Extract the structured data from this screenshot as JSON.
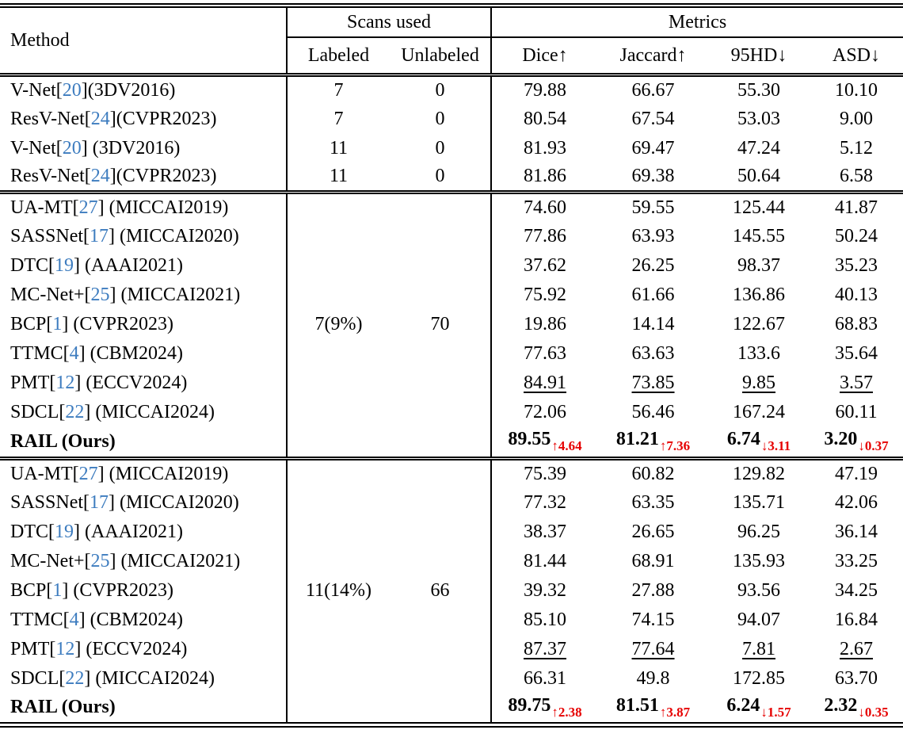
{
  "colors": {
    "citation_blue": "#3d7cbf",
    "highlight_red": "#e60000"
  },
  "header": {
    "method": "Method",
    "scans_used": "Scans used",
    "metrics": "Metrics",
    "labeled": "Labeled",
    "unlabeled": "Unlabeled",
    "metric_cols": [
      "Dice↑",
      "Jaccard↑",
      "95HD↓",
      "ASD↓"
    ]
  },
  "sections": [
    {
      "rows": [
        {
          "method": {
            "pre": "V-Net[",
            "cite": "20",
            "post": "](3DV2016)"
          },
          "bold": false,
          "underline": false,
          "labeled": "7",
          "unlabeled": "0",
          "cells": [
            "79.88",
            "66.67",
            "55.30",
            "10.10"
          ]
        },
        {
          "method": {
            "pre": "ResV-Net[",
            "cite": "24",
            "post": "](CVPR2023)"
          },
          "bold": false,
          "underline": false,
          "labeled": "7",
          "unlabeled": "0",
          "cells": [
            "80.54",
            "67.54",
            "53.03",
            "9.00"
          ]
        },
        {
          "method": {
            "pre": "V-Net[",
            "cite": "20",
            "post": "] (3DV2016)"
          },
          "bold": false,
          "underline": false,
          "labeled": "11",
          "unlabeled": "0",
          "cells": [
            "81.93",
            "69.47",
            "47.24",
            "5.12"
          ]
        },
        {
          "method": {
            "pre": "ResV-Net[",
            "cite": "24",
            "post": "](CVPR2023)"
          },
          "bold": false,
          "underline": false,
          "labeled": "11",
          "unlabeled": "0",
          "cells": [
            "81.86",
            "69.38",
            "50.64",
            "6.58"
          ]
        }
      ]
    },
    {
      "rows": [
        {
          "method": {
            "pre": "UA-MT[",
            "cite": "27",
            "post": "] (MICCAI2019)"
          },
          "bold": false,
          "underline": false,
          "labeled": "",
          "unlabeled": "",
          "cells": [
            "74.60",
            "59.55",
            "125.44",
            "41.87"
          ]
        },
        {
          "method": {
            "pre": "SASSNet[",
            "cite": "17",
            "post": "] (MICCAI2020)"
          },
          "bold": false,
          "underline": false,
          "labeled": "",
          "unlabeled": "",
          "cells": [
            "77.86",
            "63.93",
            "145.55",
            "50.24"
          ]
        },
        {
          "method": {
            "pre": "DTC[",
            "cite": "19",
            "post": "] (AAAI2021)"
          },
          "bold": false,
          "underline": false,
          "labeled": "",
          "unlabeled": "",
          "cells": [
            "37.62",
            "26.25",
            "98.37",
            "35.23"
          ]
        },
        {
          "method": {
            "pre": "MC-Net+[",
            "cite": "25",
            "post": "] (MICCAI2021)"
          },
          "bold": false,
          "underline": false,
          "labeled": "",
          "unlabeled": "",
          "cells": [
            "75.92",
            "61.66",
            "136.86",
            "40.13"
          ]
        },
        {
          "method": {
            "pre": "BCP[",
            "cite": "1",
            "post": "] (CVPR2023)"
          },
          "bold": false,
          "underline": false,
          "labeled": "7(9%)",
          "unlabeled": "70",
          "cells": [
            "19.86",
            "14.14",
            "122.67",
            "68.83"
          ]
        },
        {
          "method": {
            "pre": "TTMC[",
            "cite": "4",
            "post": "] (CBM2024)"
          },
          "bold": false,
          "underline": false,
          "labeled": "",
          "unlabeled": "",
          "cells": [
            "77.63",
            "63.63",
            "133.6",
            "35.64"
          ]
        },
        {
          "method": {
            "pre": "PMT[",
            "cite": "12",
            "post": "] (ECCV2024)"
          },
          "bold": false,
          "underline": true,
          "labeled": "",
          "unlabeled": "",
          "cells": [
            "84.91",
            "73.85",
            "9.85",
            "3.57"
          ]
        },
        {
          "method": {
            "pre": "SDCL[",
            "cite": "22",
            "post": "] (MICCAI2024)"
          },
          "bold": false,
          "underline": false,
          "labeled": "",
          "unlabeled": "",
          "cells": [
            "72.06",
            "56.46",
            "167.24",
            "60.11"
          ]
        },
        {
          "method": {
            "pre": "RAIL (Ours)",
            "cite": "",
            "post": ""
          },
          "bold": true,
          "underline": false,
          "labeled": "",
          "unlabeled": "",
          "cells": [
            {
              "main": "89.55",
              "arrow": "↑",
              "delta": "4.64"
            },
            {
              "main": "81.21",
              "arrow": "↑",
              "delta": "7.36"
            },
            {
              "main": "6.74",
              "arrow": "↓",
              "delta": "3.11"
            },
            {
              "main": "3.20",
              "arrow": "↓",
              "delta": "0.37"
            }
          ]
        }
      ]
    },
    {
      "rows": [
        {
          "method": {
            "pre": "UA-MT[",
            "cite": "27",
            "post": "] (MICCAI2019)"
          },
          "bold": false,
          "underline": false,
          "labeled": "",
          "unlabeled": "",
          "cells": [
            "75.39",
            "60.82",
            "129.82",
            "47.19"
          ]
        },
        {
          "method": {
            "pre": "SASSNet[",
            "cite": "17",
            "post": "] (MICCAI2020)"
          },
          "bold": false,
          "underline": false,
          "labeled": "",
          "unlabeled": "",
          "cells": [
            "77.32",
            "63.35",
            "135.71",
            "42.06"
          ]
        },
        {
          "method": {
            "pre": "DTC[",
            "cite": "19",
            "post": "] (AAAI2021)"
          },
          "bold": false,
          "underline": false,
          "labeled": "",
          "unlabeled": "",
          "cells": [
            "38.37",
            "26.65",
            "96.25",
            "36.14"
          ]
        },
        {
          "method": {
            "pre": "MC-Net+[",
            "cite": "25",
            "post": "] (MICCAI2021)"
          },
          "bold": false,
          "underline": false,
          "labeled": "",
          "unlabeled": "",
          "cells": [
            "81.44",
            "68.91",
            "135.93",
            "33.25"
          ]
        },
        {
          "method": {
            "pre": "BCP[",
            "cite": "1",
            "post": "] (CVPR2023)"
          },
          "bold": false,
          "underline": false,
          "labeled": "11(14%)",
          "unlabeled": "66",
          "cells": [
            "39.32",
            "27.88",
            "93.56",
            "34.25"
          ]
        },
        {
          "method": {
            "pre": "TTMC[",
            "cite": "4",
            "post": "] (CBM2024)"
          },
          "bold": false,
          "underline": false,
          "labeled": "",
          "unlabeled": "",
          "cells": [
            "85.10",
            "74.15",
            "94.07",
            "16.84"
          ]
        },
        {
          "method": {
            "pre": "PMT[",
            "cite": "12",
            "post": "] (ECCV2024)"
          },
          "bold": false,
          "underline": true,
          "labeled": "",
          "unlabeled": "",
          "cells": [
            "87.37",
            "77.64",
            "7.81",
            "2.67"
          ]
        },
        {
          "method": {
            "pre": "SDCL[",
            "cite": "22",
            "post": "] (MICCAI2024)"
          },
          "bold": false,
          "underline": false,
          "labeled": "",
          "unlabeled": "",
          "cells": [
            "66.31",
            "49.8",
            "172.85",
            "63.70"
          ]
        },
        {
          "method": {
            "pre": "RAIL (Ours)",
            "cite": "",
            "post": ""
          },
          "bold": true,
          "underline": false,
          "labeled": "",
          "unlabeled": "",
          "cells": [
            {
              "main": "89.75",
              "arrow": "↑",
              "delta": "2.38"
            },
            {
              "main": "81.51",
              "arrow": "↑",
              "delta": "3.87"
            },
            {
              "main": "6.24",
              "arrow": "↓",
              "delta": "1.57"
            },
            {
              "main": "2.32",
              "arrow": "↓",
              "delta": "0.35"
            }
          ]
        }
      ]
    }
  ]
}
